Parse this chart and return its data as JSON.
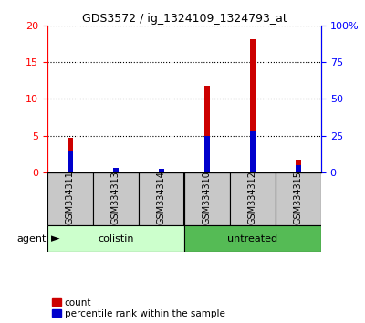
{
  "title": "GDS3572 / ig_1324109_1324793_at",
  "samples": [
    "GSM334311",
    "GSM334313",
    "GSM334314",
    "GSM334310",
    "GSM334312",
    "GSM334315"
  ],
  "count_values": [
    4.7,
    0.4,
    0.05,
    11.8,
    18.2,
    1.7
  ],
  "percentile_values": [
    15,
    3,
    2,
    25,
    28,
    5
  ],
  "left_ylim": [
    0,
    20
  ],
  "right_ylim": [
    0,
    100
  ],
  "left_yticks": [
    0,
    5,
    10,
    15,
    20
  ],
  "right_yticks": [
    0,
    25,
    50,
    75,
    100
  ],
  "right_yticklabels": [
    "0",
    "25",
    "50",
    "75",
    "100%"
  ],
  "bar_width": 0.12,
  "count_color": "#cc0000",
  "percentile_color": "#0000cc",
  "agent_groups": [
    {
      "label": "colistin",
      "span": [
        0,
        3
      ],
      "color": "#ccffcc"
    },
    {
      "label": "untreated",
      "span": [
        3,
        6
      ],
      "color": "#55bb55"
    }
  ],
  "agent_label": "agent",
  "sample_label_color": "#c8c8c8",
  "grid_color": "black",
  "grid_linestyle": "dotted",
  "title_fontsize": 9,
  "tick_fontsize": 8,
  "label_fontsize": 7,
  "legend_fontsize": 7.5
}
